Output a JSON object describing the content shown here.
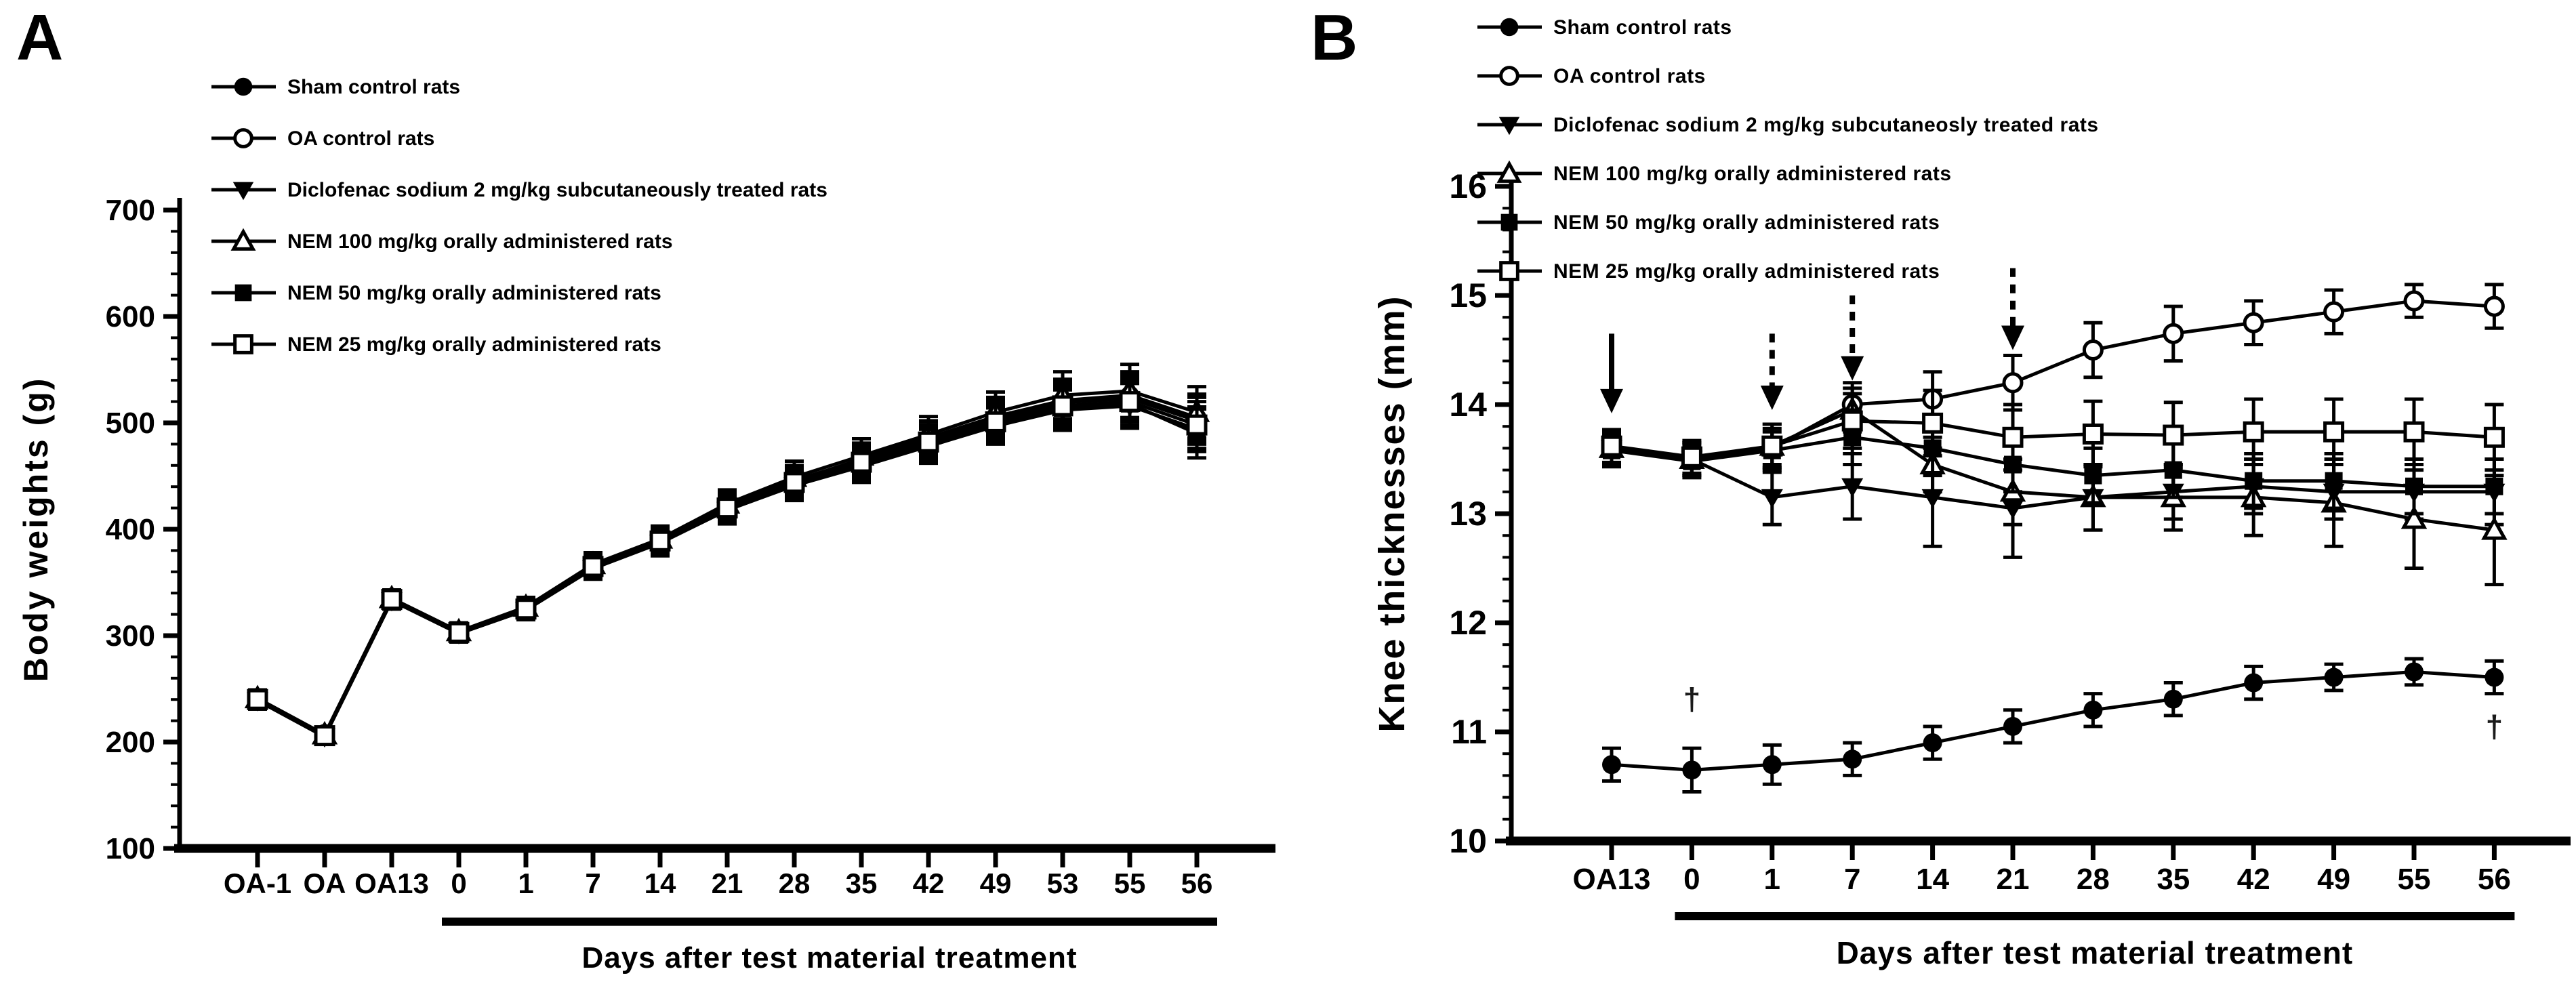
{
  "figure": {
    "panel_a_letter": "A",
    "panel_b_letter": "B"
  },
  "chart_data": [
    {
      "type": "line",
      "panel": "A",
      "title": "",
      "xlabel": "Days after test material treatment",
      "ylabel": "Body weights (g)",
      "ylim": [
        100,
        700
      ],
      "yticks": [
        100,
        200,
        300,
        400,
        500,
        600,
        700
      ],
      "y_minor_step": 20,
      "grid": "off",
      "legend_position": "top-left-inside",
      "categories": [
        "OA-1",
        "OA",
        "OA13",
        "0",
        "1",
        "7",
        "14",
        "21",
        "28",
        "35",
        "42",
        "49",
        "53",
        "55",
        "56"
      ],
      "treatment_bar": {
        "from_category": "0",
        "to_category": "56"
      },
      "series": [
        {
          "name": "Sham control rats",
          "marker": "filled-circle",
          "values": [
            240,
            206,
            334,
            303,
            325,
            365,
            389,
            421,
            445,
            466,
            486,
            506,
            521,
            526,
            505
          ],
          "errors": [
            8,
            5,
            8,
            8,
            9,
            10,
            12,
            13,
            14,
            15,
            16,
            18,
            20,
            22,
            22
          ]
        },
        {
          "name": "OA control rats",
          "marker": "open-circle",
          "values": [
            241,
            207,
            335,
            304,
            326,
            366,
            390,
            422,
            446,
            465,
            484,
            504,
            519,
            523,
            502
          ],
          "errors": [
            8,
            5,
            8,
            8,
            9,
            10,
            12,
            13,
            14,
            15,
            17,
            18,
            20,
            22,
            22
          ]
        },
        {
          "name": "Diclofenac sodium 2 mg/kg subcutaneously treated rats",
          "marker": "filled-triangle-down",
          "values": [
            239,
            205,
            333,
            302,
            324,
            363,
            387,
            418,
            441,
            459,
            478,
            497,
            512,
            516,
            494
          ],
          "errors": [
            8,
            5,
            8,
            8,
            9,
            10,
            12,
            13,
            14,
            15,
            16,
            17,
            19,
            21,
            21
          ]
        },
        {
          "name": "NEM 100 mg/kg orally administered rats",
          "marker": "open-triangle-up",
          "values": [
            241,
            207,
            335,
            304,
            327,
            367,
            391,
            424,
            449,
            469,
            489,
            510,
            526,
            530,
            510
          ],
          "errors": [
            8,
            5,
            8,
            8,
            9,
            11,
            12,
            13,
            15,
            16,
            17,
            19,
            22,
            25,
            24
          ]
        },
        {
          "name": "NEM 50 mg/kg orally administered rats",
          "marker": "filled-square",
          "values": [
            239,
            205,
            333,
            302,
            324,
            364,
            388,
            419,
            442,
            461,
            480,
            499,
            514,
            518,
            490
          ],
          "errors": [
            8,
            5,
            8,
            8,
            9,
            10,
            12,
            13,
            14,
            15,
            16,
            18,
            20,
            22,
            23
          ]
        },
        {
          "name": "NEM 25 mg/kg orally administered rats",
          "marker": "open-square",
          "values": [
            240,
            206,
            334,
            303,
            325,
            365,
            389,
            420,
            444,
            463,
            482,
            501,
            516,
            520,
            498
          ],
          "errors": [
            8,
            5,
            8,
            8,
            9,
            10,
            12,
            13,
            14,
            15,
            16,
            18,
            20,
            22,
            22
          ]
        }
      ],
      "annotations": {
        "arrows": [],
        "daggers": []
      }
    },
    {
      "type": "line",
      "panel": "B",
      "title": "",
      "xlabel": "Days after test material treatment",
      "ylabel": "Knee thicknesses (mm)",
      "ylim": [
        10,
        16
      ],
      "yticks": [
        10,
        11,
        12,
        13,
        14,
        15,
        16
      ],
      "y_minor_step": 0.2,
      "grid": "off",
      "legend_position": "top-left-inside",
      "categories": [
        "OA13",
        "0",
        "1",
        "7",
        "14",
        "21",
        "28",
        "35",
        "42",
        "49",
        "55",
        "56"
      ],
      "treatment_bar": {
        "from_category": "0",
        "to_category": "56"
      },
      "series": [
        {
          "name": "Sham control rats",
          "marker": "filled-circle",
          "values": [
            10.7,
            10.65,
            10.7,
            10.75,
            10.9,
            11.05,
            11.2,
            11.3,
            11.45,
            11.5,
            11.55,
            11.5
          ],
          "errors": [
            0.15,
            0.2,
            0.18,
            0.15,
            0.15,
            0.15,
            0.15,
            0.15,
            0.15,
            0.12,
            0.12,
            0.15
          ]
        },
        {
          "name": "OA control rats",
          "marker": "open-circle",
          "values": [
            13.6,
            13.5,
            13.6,
            14.0,
            14.05,
            14.2,
            14.5,
            14.65,
            14.75,
            14.85,
            14.95,
            14.9
          ],
          "errors": [
            0.15,
            0.15,
            0.15,
            0.2,
            0.25,
            0.25,
            0.25,
            0.25,
            0.2,
            0.2,
            0.15,
            0.2
          ]
        },
        {
          "name": "Diclofenac sodium 2 mg/kg subcutaneosly treated rats",
          "marker": "filled-triangle-down",
          "values": [
            13.6,
            13.5,
            13.15,
            13.25,
            13.15,
            13.05,
            13.15,
            13.2,
            13.25,
            13.2,
            13.2,
            13.2
          ],
          "errors": [
            0.15,
            0.15,
            0.25,
            0.3,
            0.45,
            0.45,
            0.3,
            0.25,
            0.25,
            0.25,
            0.25,
            0.3
          ]
        },
        {
          "name": "NEM 100 mg/kg orally administered rats",
          "marker": "open-triangle-up",
          "values": [
            13.6,
            13.5,
            13.62,
            13.95,
            13.45,
            13.2,
            13.15,
            13.15,
            13.15,
            13.1,
            12.95,
            12.85
          ],
          "errors": [
            0.15,
            0.15,
            0.2,
            0.2,
            0.25,
            0.3,
            0.3,
            0.3,
            0.35,
            0.4,
            0.45,
            0.5
          ]
        },
        {
          "name": "NEM 50 mg/kg orally administered rats",
          "marker": "filled-square",
          "values": [
            13.58,
            13.48,
            13.58,
            13.7,
            13.6,
            13.45,
            13.35,
            13.4,
            13.3,
            13.3,
            13.25,
            13.25
          ],
          "errors": [
            0.15,
            0.15,
            0.2,
            0.25,
            0.25,
            0.25,
            0.25,
            0.25,
            0.25,
            0.25,
            0.25,
            0.25
          ]
        },
        {
          "name": "NEM 25 mg/kg orally administered rats",
          "marker": "open-square",
          "values": [
            13.62,
            13.52,
            13.62,
            13.85,
            13.83,
            13.7,
            13.73,
            13.72,
            13.75,
            13.75,
            13.75,
            13.7
          ],
          "errors": [
            0.15,
            0.15,
            0.2,
            0.25,
            0.3,
            0.3,
            0.3,
            0.3,
            0.3,
            0.3,
            0.3,
            0.3
          ]
        }
      ],
      "annotations": {
        "arrows": [
          {
            "category": "OA13",
            "style": "solid",
            "value_from": 14.65,
            "value_to": 13.92
          },
          {
            "category": "1",
            "style": "dashed",
            "value_from": 14.65,
            "value_to": 13.95
          },
          {
            "category": "7",
            "style": "dashed",
            "value_from": 15.0,
            "value_to": 14.22
          },
          {
            "category": "21",
            "style": "dashed",
            "value_from": 15.25,
            "value_to": 14.5
          }
        ],
        "daggers": [
          {
            "category": "0",
            "value": 11.3,
            "symbol": "†"
          },
          {
            "category": "56",
            "value": 11.05,
            "symbol": "†"
          }
        ]
      }
    }
  ]
}
